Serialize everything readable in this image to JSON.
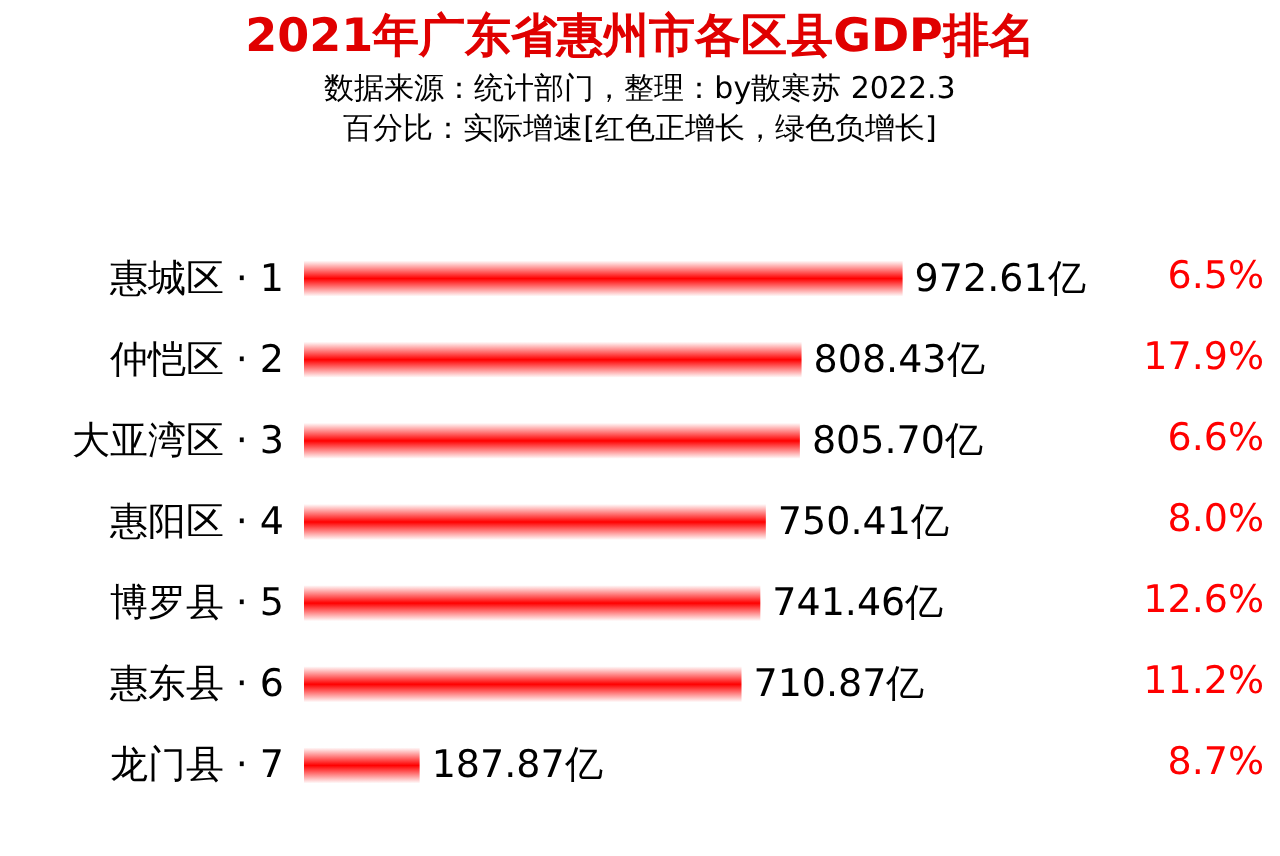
{
  "chart_data": {
    "type": "bar",
    "orientation": "horizontal",
    "title": "2021年广东省惠州市各区县GDP排名",
    "subtitle": "数据来源：统计部门，整理：by散寒苏 2022.3\n百分比：实际增速[红色正增长，绿色负增长]",
    "categories": [
      "惠城区 · 1",
      "仲恺区 · 2",
      "大亚湾区 · 3",
      "惠阳区 · 4",
      "博罗县 · 5",
      "惠东县 · 6",
      "龙门县 · 7"
    ],
    "values": [
      972.61,
      808.43,
      805.7,
      750.41,
      741.46,
      710.87,
      187.87
    ],
    "value_labels": [
      "972.61亿",
      "808.43亿",
      "805.70亿",
      "750.41亿",
      "741.46亿",
      "710.87亿",
      "187.87亿"
    ],
    "color": "#ff0000",
    "annotations": [
      "6.5%",
      "17.9%",
      "6.6%",
      "8.0%",
      "12.6%",
      "11.2%",
      "8.7%"
    ],
    "grid": false
  }
}
